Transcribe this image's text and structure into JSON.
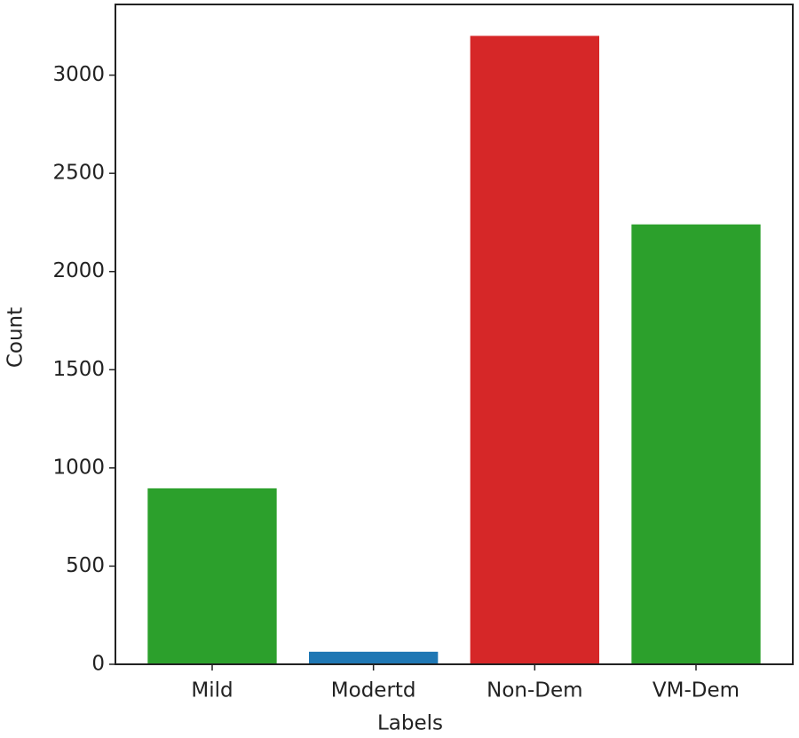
{
  "chart_data": {
    "type": "bar",
    "x_label": "Labels",
    "y_label": "Count",
    "categories": [
      "Mild",
      "Modertd",
      "Non-Dem",
      "VM-Dem"
    ],
    "values": [
      896,
      64,
      3200,
      2240
    ],
    "colors": [
      "#2ca02c",
      "#1f77b4",
      "#d62728",
      "#2ca02c"
    ],
    "ylim": [
      0,
      3360
    ],
    "yticks": [
      0,
      500,
      1000,
      1500,
      2000,
      2500,
      3000
    ],
    "grid": false
  }
}
